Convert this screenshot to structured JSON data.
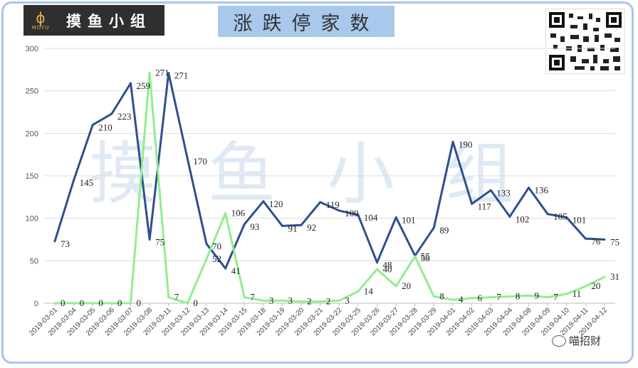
{
  "brand": {
    "logo_mark": "MOYU",
    "logo_text": "摸鱼小组"
  },
  "title": "涨跌停家数",
  "watermark": "摸鱼小组",
  "credit": "喵招财",
  "colors": {
    "series_up": "#2f4f8f",
    "series_down": "#90ee90",
    "title_bg": "#a9c9ec",
    "frame": "#a9c6e8"
  },
  "chart_data": {
    "type": "line",
    "title": "涨跌停家数",
    "ylim": [
      0,
      300
    ],
    "yticks": [
      0,
      50,
      100,
      150,
      200,
      250,
      300
    ],
    "grid": "horizontal",
    "x": [
      "2019-03-01",
      "2019-03-04",
      "2019-03-05",
      "2019-03-06",
      "2019-03-07",
      "2019-03-08",
      "2019-03-11",
      "2019-03-12",
      "2019-03-13",
      "2019-03-14",
      "2019-03-15",
      "2019-03-18",
      "2019-03-19",
      "2019-03-20",
      "2019-03-21",
      "2019-03-22",
      "2019-03-25",
      "2019-03-26",
      "2019-03-27",
      "2019-03-28",
      "2019-03-29",
      "2019-04-01",
      "2019-04-02",
      "2019-04-03",
      "2019-04-04",
      "2019-04-08",
      "2019-04-09",
      "2019-04-10",
      "2019-04-11",
      "2019-04-12"
    ],
    "series": [
      {
        "color": "#2f4f8f",
        "values": [
          73,
          145,
          210,
          223,
          259,
          75,
          271,
          170,
          70,
          41,
          93,
          120,
          91,
          92,
          119,
          109,
          104,
          48,
          101,
          56,
          89,
          190,
          117,
          133,
          102,
          136,
          105,
          101,
          76,
          75
        ]
      },
      {
        "color": "#90ee90",
        "values": [
          0,
          0,
          0,
          0,
          0,
          271,
          7,
          0,
          52,
          106,
          7,
          3,
          3,
          2,
          2,
          3,
          14,
          40,
          20,
          55,
          8,
          4,
          6,
          7,
          8,
          9,
          7,
          11,
          20,
          31
        ]
      }
    ]
  }
}
